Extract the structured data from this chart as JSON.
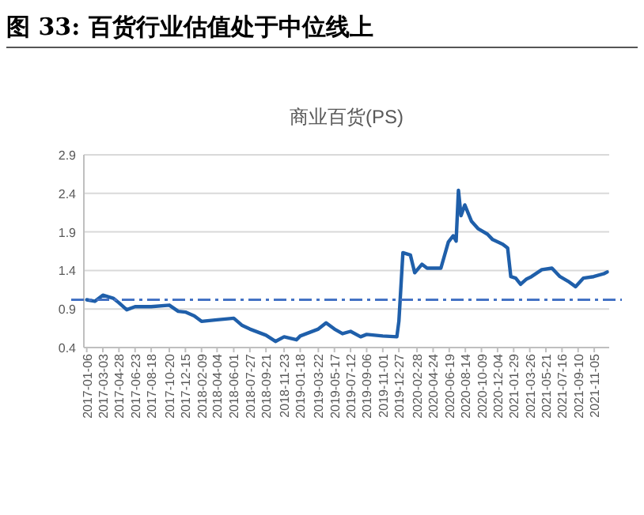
{
  "chart_data": {
    "type": "line",
    "title": "图 33:  百货行业估值处于中位线上",
    "subtitle": "商业百货(PS)",
    "x": [
      "2017-01-06",
      "2017-02-03",
      "2017-03-03",
      "2017-04-08",
      "2017-04-28",
      "2017-05-25",
      "2017-06-23",
      "2017-08-18",
      "2017-10-20",
      "2017-11-20",
      "2017-12-15",
      "2018-01-15",
      "2018-02-09",
      "2018-04-04",
      "2018-06-01",
      "2018-06-29",
      "2018-07-27",
      "2018-09-21",
      "2018-10-24",
      "2018-11-23",
      "2019-01-05",
      "2019-01-18",
      "2019-03-22",
      "2019-04-18",
      "2019-05-17",
      "2019-06-14",
      "2019-07-12",
      "2019-08-16",
      "2019-09-06",
      "2019-11-01",
      "2019-12-20",
      "2019-12-27",
      "2020-01-10",
      "2020-02-05",
      "2020-02-20",
      "2020-03-16",
      "2020-04-03",
      "2020-05-21",
      "2020-06-16",
      "2020-07-03",
      "2020-07-13",
      "2020-07-21",
      "2020-07-30",
      "2020-08-12",
      "2020-09-04",
      "2020-09-28",
      "2020-10-30",
      "2020-11-17",
      "2020-12-22",
      "2021-01-08",
      "2021-01-19",
      "2021-02-05",
      "2021-02-22",
      "2021-03-15",
      "2021-04-01",
      "2021-05-07",
      "2021-06-11",
      "2021-07-09",
      "2021-08-06",
      "2021-09-01",
      "2021-09-28",
      "2021-11-03",
      "2021-12-10",
      "2021-12-20"
    ],
    "series": [
      {
        "color": "#1f5faa",
        "values": [
          1.02,
          1.0,
          1.08,
          1.04,
          0.98,
          0.89,
          0.93,
          0.93,
          0.95,
          0.87,
          0.86,
          0.81,
          0.74,
          0.76,
          0.78,
          0.69,
          0.64,
          0.56,
          0.48,
          0.54,
          0.5,
          0.55,
          0.64,
          0.72,
          0.64,
          0.58,
          0.61,
          0.54,
          0.57,
          0.55,
          0.54,
          0.74,
          1.63,
          1.6,
          1.37,
          1.48,
          1.43,
          1.43,
          1.77,
          1.85,
          1.78,
          2.44,
          2.11,
          2.25,
          2.04,
          1.94,
          1.87,
          1.8,
          1.74,
          1.69,
          1.32,
          1.3,
          1.22,
          1.29,
          1.32,
          1.41,
          1.43,
          1.32,
          1.26,
          1.19,
          1.3,
          1.32,
          1.36,
          1.38
        ]
      }
    ],
    "xlim": [
      "2016-12-27",
      "2021-12-27"
    ],
    "xticks": [
      "2017-01-06",
      "2017-03-03",
      "2017-04-28",
      "2017-06-23",
      "2017-08-18",
      "2017-10-20",
      "2017-12-15",
      "2018-02-09",
      "2018-04-04",
      "2018-06-01",
      "2018-07-27",
      "2018-09-21",
      "2018-11-23",
      "2019-01-18",
      "2019-03-22",
      "2019-05-17",
      "2019-07-12",
      "2019-09-06",
      "2019-11-01",
      "2019-12-27",
      "2020-02-28",
      "2020-04-24",
      "2020-06-19",
      "2020-08-14",
      "2020-10-09",
      "2020-12-04",
      "2021-01-29",
      "2021-03-26",
      "2021-05-21",
      "2021-07-16",
      "2021-09-10",
      "2021-11-05"
    ],
    "ylim": [
      0.4,
      2.9
    ],
    "yticks": [
      0.4,
      0.9,
      1.4,
      1.9,
      2.4,
      2.9
    ],
    "grid": "y",
    "line_style": "solid",
    "marker": "none",
    "ref_lines": [
      {
        "axis": "y",
        "value": 1.02,
        "color": "#4472c4",
        "line_style": "dashdot"
      }
    ]
  }
}
